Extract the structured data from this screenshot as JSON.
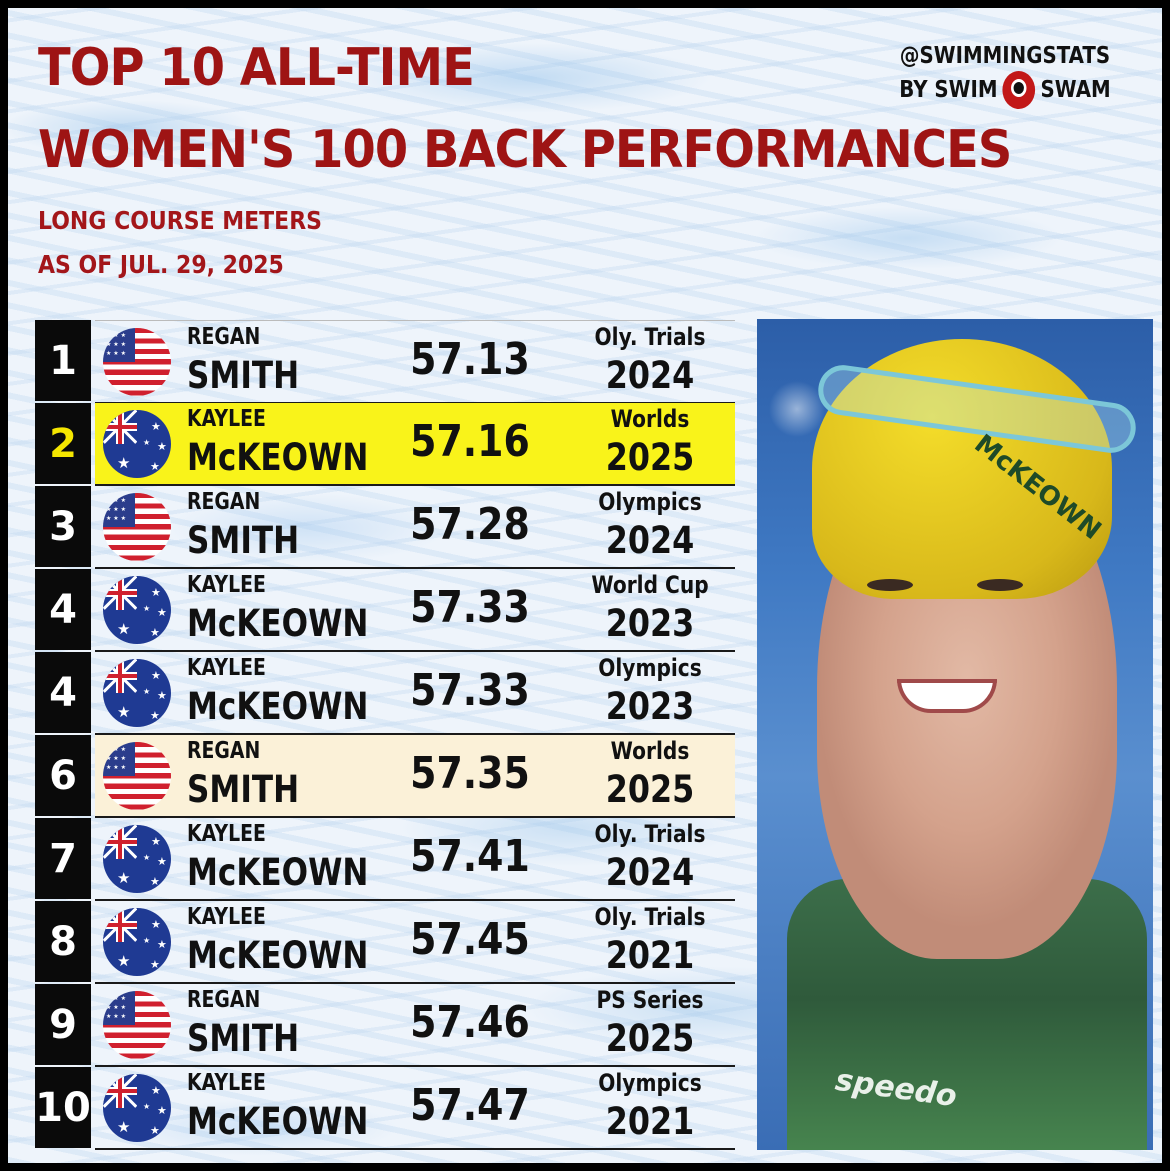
{
  "header": {
    "title_line1": "TOP 10 ALL-TIME",
    "title_line2": "WOMEN'S 100 BACK PERFORMANCES",
    "course": "LONG COURSE METERS",
    "as_of": "AS OF JUL. 29, 2025",
    "handle": "@SWIMMINGSTATS",
    "by_left": "BY SWIM",
    "by_right": "SWAM"
  },
  "colors": {
    "title": "#9e1414",
    "highlight_yellow": "#f9f31a",
    "highlight_cream": "#fbf1d8",
    "rank_bg": "#0a0a0a"
  },
  "rows": [
    {
      "rank": "1",
      "flag": "us-flag-icon",
      "first": "REGAN",
      "last": "SMITH",
      "time": "57.13",
      "meet": "Oly. Trials",
      "year": "2024",
      "highlight": "none"
    },
    {
      "rank": "2",
      "flag": "au-flag-icon",
      "first": "KAYLEE",
      "last": "McKEOWN",
      "time": "57.16",
      "meet": "Worlds",
      "year": "2025",
      "highlight": "yellow"
    },
    {
      "rank": "3",
      "flag": "us-flag-icon",
      "first": "REGAN",
      "last": "SMITH",
      "time": "57.28",
      "meet": "Olympics",
      "year": "2024",
      "highlight": "none"
    },
    {
      "rank": "4",
      "flag": "au-flag-icon",
      "first": "KAYLEE",
      "last": "McKEOWN",
      "time": "57.33",
      "meet": "World Cup",
      "year": "2023",
      "highlight": "none"
    },
    {
      "rank": "4",
      "flag": "au-flag-icon",
      "first": "KAYLEE",
      "last": "McKEOWN",
      "time": "57.33",
      "meet": "Olympics",
      "year": "2023",
      "highlight": "none"
    },
    {
      "rank": "6",
      "flag": "us-flag-icon",
      "first": "REGAN",
      "last": "SMITH",
      "time": "57.35",
      "meet": "Worlds",
      "year": "2025",
      "highlight": "cream"
    },
    {
      "rank": "7",
      "flag": "au-flag-icon",
      "first": "KAYLEE",
      "last": "McKEOWN",
      "time": "57.41",
      "meet": "Oly. Trials",
      "year": "2024",
      "highlight": "none"
    },
    {
      "rank": "8",
      "flag": "au-flag-icon",
      "first": "KAYLEE",
      "last": "McKEOWN",
      "time": "57.45",
      "meet": "Oly. Trials",
      "year": "2021",
      "highlight": "none"
    },
    {
      "rank": "9",
      "flag": "us-flag-icon",
      "first": "REGAN",
      "last": "SMITH",
      "time": "57.46",
      "meet": "PS Series",
      "year": "2025",
      "highlight": "none"
    },
    {
      "rank": "10",
      "flag": "au-flag-icon",
      "first": "KAYLEE",
      "last": "McKEOWN",
      "time": "57.47",
      "meet": "Olympics",
      "year": "2021",
      "highlight": "none"
    }
  ],
  "photo": {
    "cap_text": "McKEOWN",
    "suit_text": "speedo"
  }
}
